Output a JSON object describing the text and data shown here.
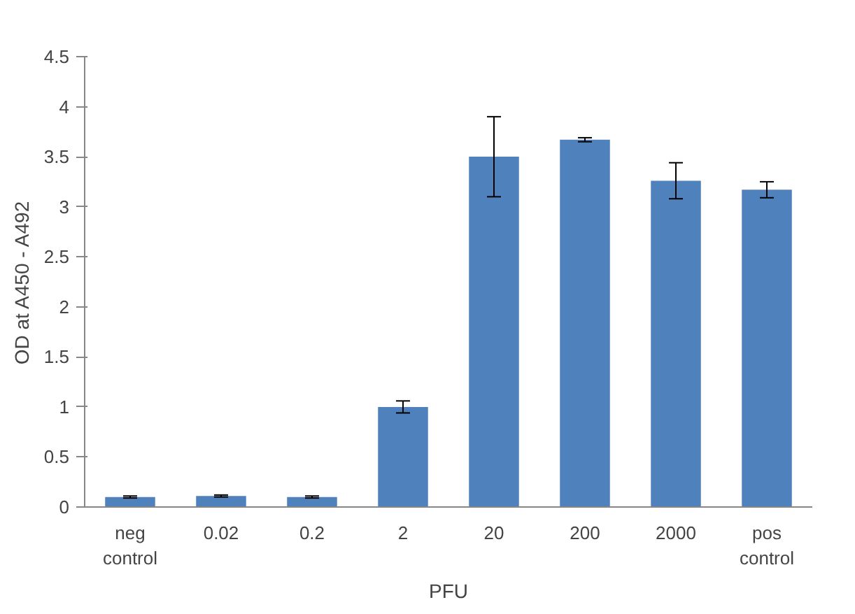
{
  "chart_data": {
    "type": "bar",
    "ylabel": "OD at A450 - A492",
    "xlabel": "PFU",
    "categories": [
      "neg control",
      "0.02",
      "0.2",
      "2",
      "20",
      "200",
      "2000",
      "pos control"
    ],
    "values": [
      0.1,
      0.11,
      0.1,
      1.0,
      3.5,
      3.67,
      3.26,
      3.17
    ],
    "errors": [
      0.01,
      0.01,
      0.01,
      0.06,
      0.4,
      0.02,
      0.18,
      0.08
    ],
    "color": "#4f81bd",
    "ylim": [
      0,
      4.5
    ],
    "yticks": [
      0,
      0.5,
      1,
      1.5,
      2,
      2.5,
      3,
      3.5,
      4,
      4.5
    ],
    "grid": false
  }
}
